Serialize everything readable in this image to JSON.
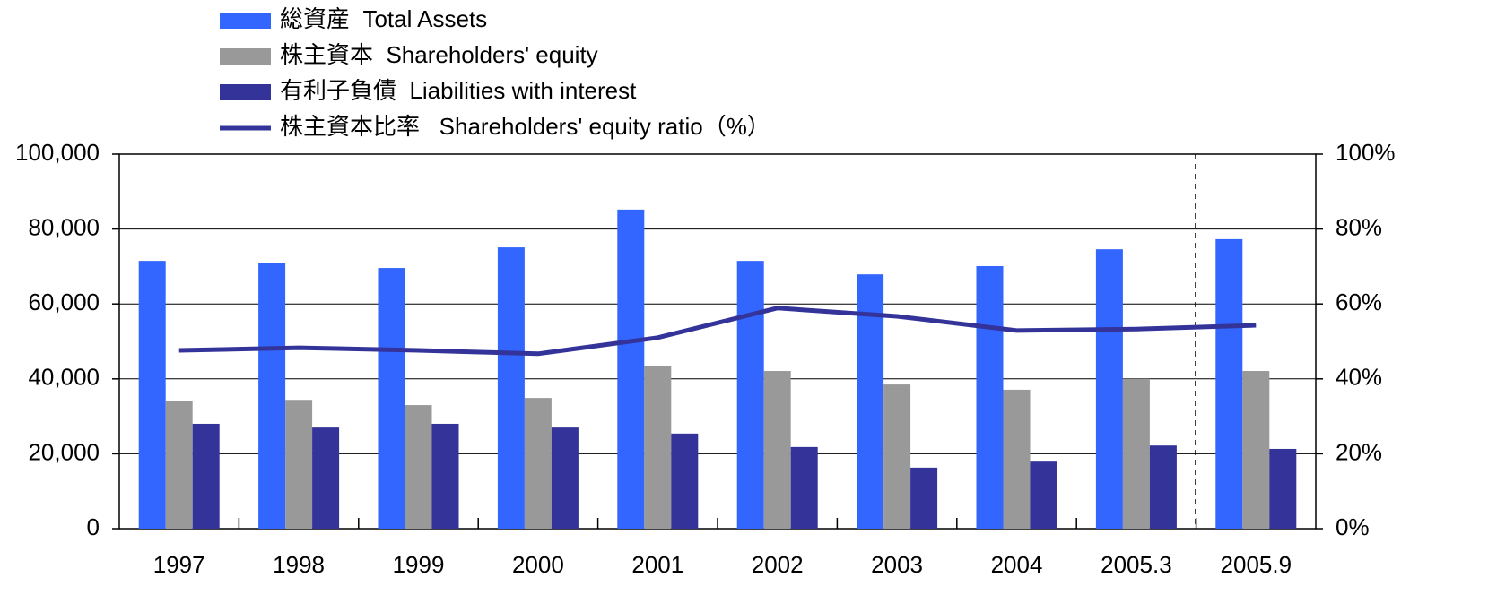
{
  "chart_data": {
    "type": "bar",
    "categories": [
      "1997",
      "1998",
      "1999",
      "2000",
      "2001",
      "2002",
      "2003",
      "2004",
      "2005.3",
      "2005.9"
    ],
    "series": [
      {
        "name": "総資産  Total Assets",
        "color": "#3366ff",
        "values": [
          71500,
          71000,
          69600,
          75100,
          85200,
          71500,
          67900,
          70100,
          74600,
          77300
        ]
      },
      {
        "name": "株主資本  Shareholders' equity",
        "color": "#999999",
        "values": [
          34000,
          34400,
          33000,
          34900,
          43500,
          42100,
          38500,
          37100,
          40000,
          42100
        ]
      },
      {
        "name": "有利子負債  Liabilities with interest",
        "color": "#333399",
        "values": [
          28000,
          27000,
          28000,
          27000,
          25400,
          21800,
          16300,
          17900,
          22200,
          21300
        ]
      },
      {
        "name": "株主資本比率   Shareholders' equity ratio（%）",
        "color": "#333399",
        "type": "line",
        "axis": "y2",
        "values": [
          47.6,
          48.3,
          47.6,
          46.7,
          51.0,
          58.9,
          56.7,
          52.9,
          53.3,
          54.3
        ]
      }
    ],
    "ylim": [
      0,
      100000
    ],
    "yticks": [
      0,
      {
        "value": 20000,
        "label": "20,000"
      },
      {
        "value": 40000,
        "label": "40,000"
      },
      {
        "value": 60000,
        "label": "60,000"
      },
      {
        "value": 80000,
        "label": "80,000"
      },
      {
        "value": 100000,
        "label": "100,000"
      }
    ],
    "y2lim": [
      0,
      100
    ],
    "y2ticks": [
      {
        "value": 0,
        "label": "0%"
      },
      {
        "value": 20,
        "label": "20%"
      },
      {
        "value": 40,
        "label": "40%"
      },
      {
        "value": 60,
        "label": "60%"
      },
      {
        "value": 80,
        "label": "80%"
      },
      {
        "value": 100,
        "label": "100%"
      }
    ],
    "grid": true
  }
}
